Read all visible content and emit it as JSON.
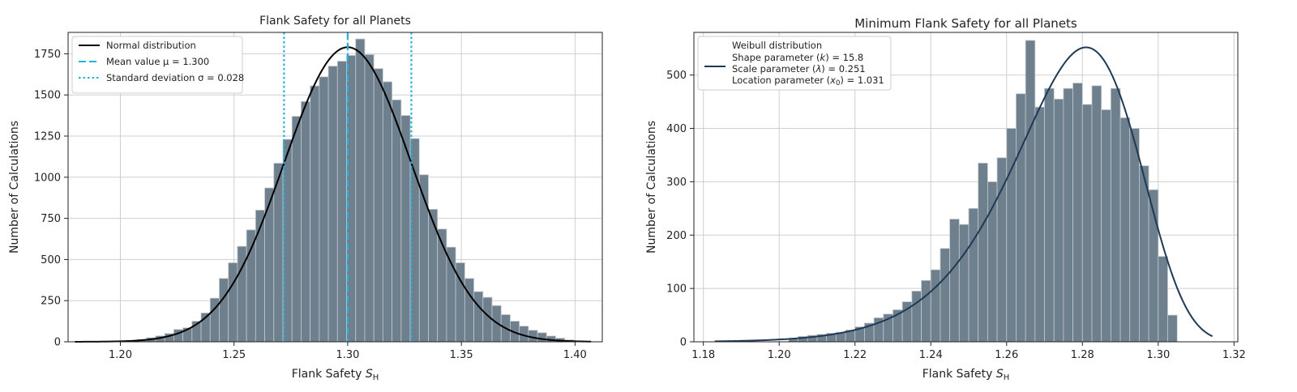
{
  "chart_data": [
    {
      "type": "bar",
      "title": "Flank Safety for all Planets",
      "xlabel_main": "Flank Safety ",
      "xlabel_symbol": "S",
      "xlabel_sub": "H",
      "ylabel": "Number of Calculations",
      "xlim": [
        1.177,
        1.412
      ],
      "ylim": [
        0,
        1880
      ],
      "xticks": [
        1.2,
        1.25,
        1.3,
        1.35,
        1.4
      ],
      "xtick_labels": [
        "1.20",
        "1.25",
        "1.30",
        "1.35",
        "1.40"
      ],
      "yticks": [
        0,
        250,
        500,
        750,
        1000,
        1250,
        1500,
        1750
      ],
      "ytick_labels": [
        "0",
        "250",
        "500",
        "750",
        "1000",
        "1250",
        "1500",
        "1750"
      ],
      "grid": true,
      "legend_position": "top-left",
      "bar_color": "#6e7f8d",
      "bins": {
        "start": 1.1995,
        "width": 0.004,
        "values": [
          3,
          8,
          15,
          25,
          36,
          50,
          75,
          85,
          125,
          175,
          265,
          385,
          480,
          580,
          680,
          800,
          935,
          1085,
          1230,
          1370,
          1460,
          1555,
          1610,
          1675,
          1705,
          1740,
          1840,
          1745,
          1660,
          1580,
          1470,
          1375,
          1235,
          1015,
          805,
          685,
          575,
          480,
          385,
          305,
          270,
          220,
          165,
          125,
          95,
          70,
          55,
          35,
          22,
          12,
          6,
          3
        ]
      },
      "fit_curve": {
        "kind": "normal",
        "mean": 1.3,
        "std": 0.028,
        "peak": 1790,
        "x_range": [
          1.18,
          1.407
        ],
        "color": "#000000",
        "label": "Normal distribution"
      },
      "mean_line": {
        "x": 1.3,
        "color": "#1fb2e0",
        "label": "Mean value μ = 1.300"
      },
      "std_lines": {
        "x": [
          1.272,
          1.328
        ],
        "color": "#1fb2e0",
        "label": "Standard deviation σ = 0.028"
      }
    },
    {
      "type": "bar",
      "title": "Minimum Flank Safety for all Planets",
      "xlabel_main": "Flank Safety ",
      "xlabel_symbol": "S",
      "xlabel_sub": "H",
      "ylabel": "Number of Calculations",
      "xlim": [
        1.1775,
        1.321
      ],
      "ylim": [
        0,
        580
      ],
      "xticks": [
        1.18,
        1.2,
        1.22,
        1.24,
        1.26,
        1.28,
        1.3,
        1.32
      ],
      "xtick_labels": [
        "1.18",
        "1.20",
        "1.22",
        "1.24",
        "1.26",
        "1.28",
        "1.30",
        "1.32"
      ],
      "yticks": [
        0,
        100,
        200,
        300,
        400,
        500
      ],
      "ytick_labels": [
        "0",
        "100",
        "200",
        "300",
        "400",
        "500"
      ],
      "grid": true,
      "legend_position": "top-left",
      "bar_color": "#6e7f8d",
      "bins": {
        "start": 1.2025,
        "width": 0.0025,
        "values": [
          5,
          10,
          12,
          14,
          16,
          18,
          22,
          28,
          35,
          45,
          52,
          60,
          75,
          95,
          115,
          135,
          175,
          230,
          220,
          250,
          335,
          300,
          345,
          400,
          465,
          565,
          440,
          475,
          455,
          475,
          485,
          445,
          480,
          435,
          475,
          420,
          400,
          330,
          285,
          160,
          50
        ]
      },
      "fit_curve": {
        "kind": "weibull",
        "shape": 15.8,
        "scale": 0.251,
        "location": 1.031,
        "peak": 552,
        "x_range": [
          1.183,
          1.3143
        ],
        "color": "#1e3a55"
      },
      "legend": {
        "title": "Weibull distribution",
        "lines": [
          {
            "prefix": "Shape parameter (",
            "symbol": "k",
            "sub": "",
            "suffix": ") = 15.8"
          },
          {
            "prefix": "Scale parameter (",
            "symbol": "λ",
            "sub": "",
            "suffix": ") = 0.251"
          },
          {
            "prefix": "Location parameter (",
            "symbol": "x",
            "sub": "0",
            "suffix": ") = 1.031"
          }
        ]
      }
    }
  ]
}
